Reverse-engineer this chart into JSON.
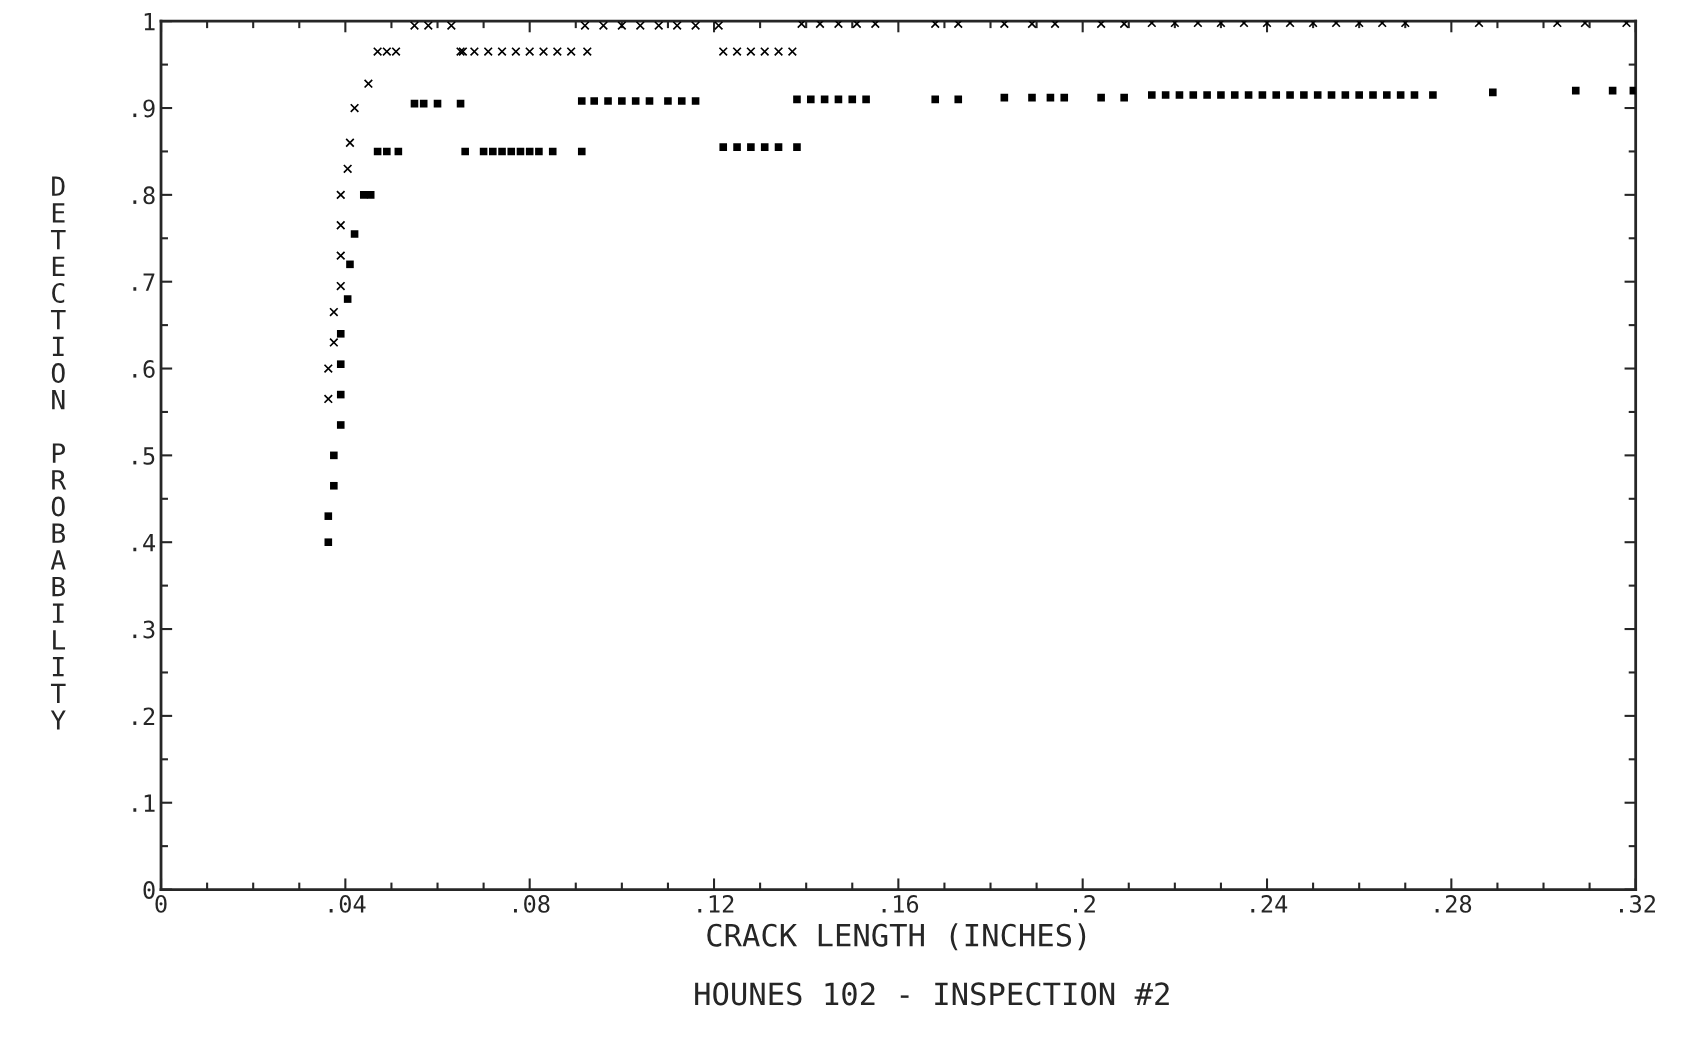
{
  "chart_data": {
    "type": "scatter",
    "xlabel": "CRACK LENGTH (INCHES)",
    "ylabel": "DETECTION PROBABILITY",
    "annotations": [
      "HOUNES 102 - INSPECTION #2"
    ],
    "xlim": [
      0,
      0.32
    ],
    "ylim": [
      0,
      1
    ],
    "xticks": [
      {
        "value": 0,
        "label": "0"
      },
      {
        "value": 0.01,
        "label": null
      },
      {
        "value": 0.02,
        "label": null
      },
      {
        "value": 0.03,
        "label": null
      },
      {
        "value": 0.04,
        "label": ".04"
      },
      {
        "value": 0.05,
        "label": null
      },
      {
        "value": 0.06,
        "label": null
      },
      {
        "value": 0.07,
        "label": null
      },
      {
        "value": 0.08,
        "label": ".08"
      },
      {
        "value": 0.09,
        "label": null
      },
      {
        "value": 0.1,
        "label": null
      },
      {
        "value": 0.11,
        "label": null
      },
      {
        "value": 0.12,
        "label": ".12"
      },
      {
        "value": 0.13,
        "label": null
      },
      {
        "value": 0.14,
        "label": null
      },
      {
        "value": 0.15,
        "label": null
      },
      {
        "value": 0.16,
        "label": ".16"
      },
      {
        "value": 0.17,
        "label": null
      },
      {
        "value": 0.18,
        "label": null
      },
      {
        "value": 0.19,
        "label": null
      },
      {
        "value": 0.2,
        "label": ".2"
      },
      {
        "value": 0.21,
        "label": null
      },
      {
        "value": 0.22,
        "label": null
      },
      {
        "value": 0.23,
        "label": null
      },
      {
        "value": 0.24,
        "label": ".24"
      },
      {
        "value": 0.25,
        "label": null
      },
      {
        "value": 0.26,
        "label": null
      },
      {
        "value": 0.27,
        "label": null
      },
      {
        "value": 0.28,
        "label": ".28"
      },
      {
        "value": 0.29,
        "label": null
      },
      {
        "value": 0.3,
        "label": null
      },
      {
        "value": 0.31,
        "label": null
      },
      {
        "value": 0.32,
        "label": ".32"
      }
    ],
    "yticks": [
      {
        "value": 0,
        "label": "0"
      },
      {
        "value": 0.05,
        "label": null
      },
      {
        "value": 0.1,
        "label": ".1"
      },
      {
        "value": 0.15,
        "label": null
      },
      {
        "value": 0.2,
        "label": ".2"
      },
      {
        "value": 0.25,
        "label": null
      },
      {
        "value": 0.3,
        "label": ".3"
      },
      {
        "value": 0.35,
        "label": null
      },
      {
        "value": 0.4,
        "label": ".4"
      },
      {
        "value": 0.45,
        "label": null
      },
      {
        "value": 0.5,
        "label": ".5"
      },
      {
        "value": 0.55,
        "label": null
      },
      {
        "value": 0.6,
        "label": ".6"
      },
      {
        "value": 0.65,
        "label": null
      },
      {
        "value": 0.7,
        "label": ".7"
      },
      {
        "value": 0.75,
        "label": null
      },
      {
        "value": 0.8,
        "label": ".8"
      },
      {
        "value": 0.85,
        "label": null
      },
      {
        "value": 0.9,
        "label": ".9"
      },
      {
        "value": 0.95,
        "label": null
      },
      {
        "value": 1,
        "label": "1"
      }
    ],
    "series": [
      {
        "color": "#000000",
        "marker": "square",
        "x": [
          0.0363,
          0.0363,
          0.0375,
          0.0375,
          0.039,
          0.039,
          0.039,
          0.039,
          0.0405,
          0.041,
          0.042,
          0.044,
          0.0455,
          0.047,
          0.049,
          0.0515,
          0.055,
          0.057,
          0.06,
          0.065,
          0.066,
          0.07,
          0.072,
          0.074,
          0.076,
          0.078,
          0.08,
          0.082,
          0.085,
          0.0913,
          0.0913,
          0.094,
          0.097,
          0.1,
          0.103,
          0.106,
          0.11,
          0.113,
          0.116,
          0.122,
          0.125,
          0.128,
          0.131,
          0.134,
          0.138,
          0.138,
          0.141,
          0.144,
          0.147,
          0.15,
          0.153,
          0.168,
          0.173,
          0.183,
          0.189,
          0.193,
          0.196,
          0.204,
          0.209,
          0.215,
          0.218,
          0.221,
          0.224,
          0.227,
          0.23,
          0.233,
          0.236,
          0.239,
          0.242,
          0.245,
          0.248,
          0.251,
          0.254,
          0.257,
          0.26,
          0.263,
          0.266,
          0.269,
          0.272,
          0.276,
          0.289,
          0.307,
          0.315,
          0.3195
        ],
        "values": [
          0.4,
          0.43,
          0.465,
          0.5,
          0.535,
          0.57,
          0.605,
          0.64,
          0.68,
          0.72,
          0.755,
          0.8,
          0.8,
          0.85,
          0.85,
          0.85,
          0.905,
          0.905,
          0.905,
          0.905,
          0.85,
          0.85,
          0.85,
          0.85,
          0.85,
          0.85,
          0.85,
          0.85,
          0.85,
          0.85,
          0.908,
          0.908,
          0.908,
          0.908,
          0.908,
          0.908,
          0.908,
          0.908,
          0.908,
          0.855,
          0.855,
          0.855,
          0.855,
          0.855,
          0.855,
          0.91,
          0.91,
          0.91,
          0.91,
          0.91,
          0.91,
          0.91,
          0.91,
          0.912,
          0.912,
          0.912,
          0.912,
          0.912,
          0.912,
          0.915,
          0.915,
          0.915,
          0.915,
          0.915,
          0.915,
          0.915,
          0.915,
          0.915,
          0.915,
          0.915,
          0.915,
          0.915,
          0.915,
          0.915,
          0.915,
          0.915,
          0.915,
          0.915,
          0.915,
          0.915,
          0.918,
          0.92,
          0.92,
          0.92
        ]
      },
      {
        "color": "#000000",
        "marker": "cross",
        "x": [
          0.0363,
          0.0363,
          0.0375,
          0.0375,
          0.039,
          0.039,
          0.039,
          0.039,
          0.0405,
          0.041,
          0.042,
          0.045,
          0.047,
          0.049,
          0.051,
          0.055,
          0.058,
          0.063,
          0.065,
          0.0655,
          0.068,
          0.071,
          0.074,
          0.077,
          0.08,
          0.083,
          0.086,
          0.089,
          0.0925,
          0.092,
          0.096,
          0.1,
          0.104,
          0.108,
          0.112,
          0.116,
          0.122,
          0.125,
          0.128,
          0.131,
          0.134,
          0.137,
          0.121,
          0.139,
          0.143,
          0.147,
          0.151,
          0.155,
          0.168,
          0.173,
          0.183,
          0.189,
          0.194,
          0.204,
          0.209,
          0.215,
          0.22,
          0.225,
          0.23,
          0.235,
          0.24,
          0.245,
          0.25,
          0.255,
          0.26,
          0.265,
          0.27,
          0.286,
          0.303,
          0.309,
          0.318
        ],
        "values": [
          0.565,
          0.6,
          0.63,
          0.665,
          0.695,
          0.73,
          0.765,
          0.8,
          0.83,
          0.86,
          0.9,
          0.928,
          0.965,
          0.965,
          0.965,
          0.995,
          0.995,
          0.995,
          0.965,
          0.965,
          0.965,
          0.965,
          0.965,
          0.965,
          0.965,
          0.965,
          0.965,
          0.965,
          0.965,
          0.995,
          0.995,
          0.995,
          0.995,
          0.995,
          0.995,
          0.995,
          0.965,
          0.965,
          0.965,
          0.965,
          0.965,
          0.965,
          0.995,
          0.997,
          0.997,
          0.997,
          0.997,
          0.997,
          0.997,
          0.997,
          0.997,
          0.997,
          0.997,
          0.997,
          0.997,
          0.998,
          0.998,
          0.998,
          0.998,
          0.998,
          0.998,
          0.998,
          0.998,
          0.998,
          0.998,
          0.998,
          0.998,
          0.998,
          0.998,
          0.998,
          0.998
        ]
      }
    ]
  }
}
